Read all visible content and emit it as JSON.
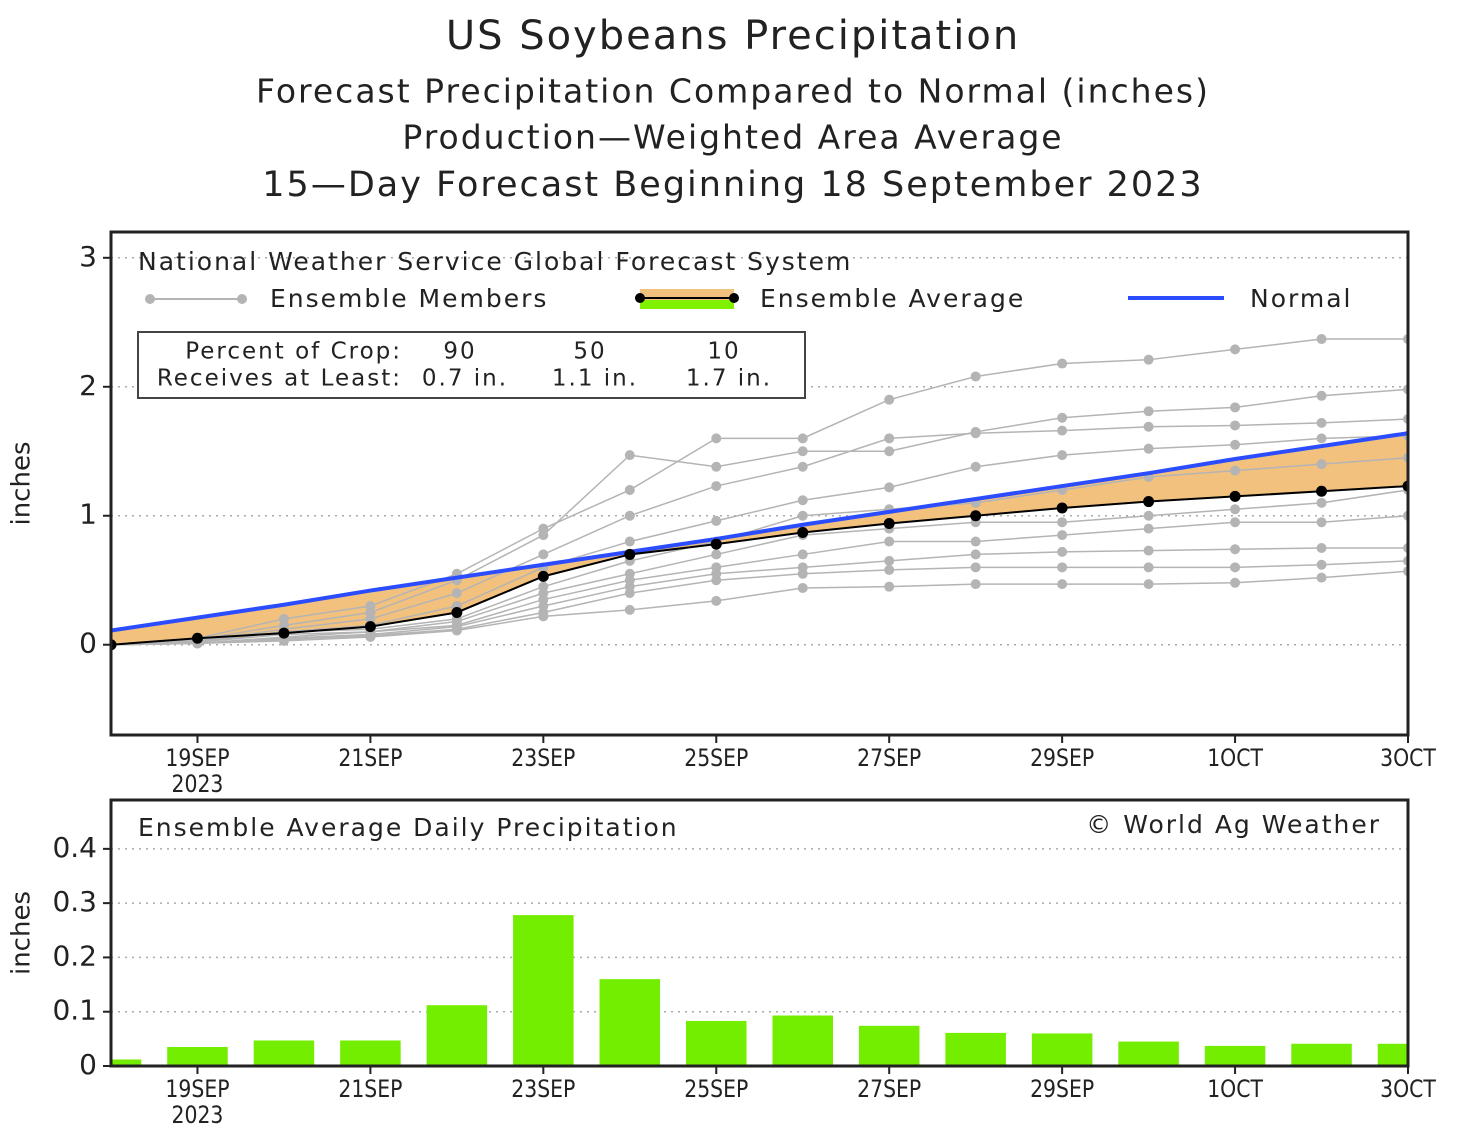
{
  "chart_data": [
    {
      "type": "line",
      "title": "US Soybeans Precipitation",
      "subtitles": [
        "Forecast Precipitation Compared to Normal (inches)",
        "Production—Weighted Area Average",
        "15—Day Forecast Beginning 18 September 2023"
      ],
      "source_label": "National Weather Service Global Forecast System",
      "ylabel": "inches",
      "categories": [
        null,
        "19SEP",
        null,
        "21SEP",
        null,
        "23SEP",
        null,
        "25SEP",
        null,
        "27SEP",
        null,
        "29SEP",
        null,
        "1OCT",
        null,
        "3OCT"
      ],
      "year_label": "2023",
      "ylim": [
        -0.7,
        3.2
      ],
      "yticks": [
        0,
        1,
        2,
        3
      ],
      "grid": true,
      "members": {
        "name": "Ensemble Members",
        "color": "#b4b4b4",
        "values": [
          [
            0,
            0.05,
            0.2,
            0.3,
            0.55,
            0.9,
            1.2,
            1.6,
            1.6,
            1.9,
            2.08,
            2.18,
            2.21,
            2.29,
            2.37,
            2.37
          ],
          [
            0,
            0.04,
            0.15,
            0.25,
            0.5,
            0.85,
            1.47,
            1.38,
            1.5,
            1.5,
            1.65,
            1.76,
            1.81,
            1.84,
            1.93,
            1.98
          ],
          [
            0,
            0.03,
            0.12,
            0.2,
            0.4,
            0.7,
            1.0,
            1.23,
            1.38,
            1.6,
            1.64,
            1.66,
            1.69,
            1.7,
            1.72,
            1.75
          ],
          [
            0,
            0.02,
            0.1,
            0.15,
            0.3,
            0.6,
            0.8,
            0.96,
            1.12,
            1.22,
            1.38,
            1.47,
            1.52,
            1.55,
            1.6,
            1.62
          ],
          [
            0,
            0.03,
            0.1,
            0.12,
            0.2,
            0.45,
            0.65,
            0.8,
            1.0,
            1.05,
            1.1,
            1.2,
            1.3,
            1.35,
            1.4,
            1.45
          ],
          [
            0,
            0.02,
            0.08,
            0.1,
            0.18,
            0.4,
            0.55,
            0.7,
            0.85,
            0.9,
            0.95,
            0.95,
            1.0,
            1.05,
            1.1,
            1.2
          ],
          [
            0,
            0.01,
            0.06,
            0.1,
            0.15,
            0.35,
            0.5,
            0.6,
            0.7,
            0.8,
            0.8,
            0.85,
            0.9,
            0.95,
            0.95,
            1.0
          ],
          [
            0,
            0.01,
            0.05,
            0.08,
            0.14,
            0.3,
            0.45,
            0.55,
            0.6,
            0.65,
            0.7,
            0.72,
            0.73,
            0.74,
            0.75,
            0.75
          ],
          [
            0,
            0.01,
            0.04,
            0.07,
            0.12,
            0.25,
            0.4,
            0.5,
            0.55,
            0.58,
            0.6,
            0.6,
            0.6,
            0.6,
            0.62,
            0.65
          ],
          [
            0,
            0.01,
            0.03,
            0.06,
            0.11,
            0.22,
            0.27,
            0.34,
            0.44,
            0.45,
            0.47,
            0.47,
            0.47,
            0.48,
            0.52,
            0.57
          ]
        ]
      },
      "series": [
        {
          "name": "Ensemble Average",
          "color": "#000000",
          "band_color": "#f3c17e",
          "band_edge_color": "#7ef000",
          "values": [
            0,
            0.05,
            0.09,
            0.14,
            0.25,
            0.53,
            0.7,
            0.78,
            0.87,
            0.94,
            1.0,
            1.06,
            1.11,
            1.15,
            1.19,
            1.23
          ]
        },
        {
          "name": "Normal",
          "color": "#2b4dff",
          "values": [
            0.11,
            0.21,
            0.31,
            0.42,
            0.52,
            0.62,
            0.72,
            0.82,
            0.93,
            1.03,
            1.13,
            1.23,
            1.33,
            1.44,
            1.54,
            1.64
          ]
        }
      ],
      "crop_table": {
        "header": [
          "Percent of Crop:",
          "Receives at Least:"
        ],
        "columns": [
          [
            "90",
            "0.7 in."
          ],
          [
            "50",
            "1.1 in."
          ],
          [
            "10",
            "1.7 in."
          ]
        ]
      }
    },
    {
      "type": "bar",
      "title": "Ensemble Average Daily Precipitation",
      "credit": "© World Ag Weather",
      "ylabel": "inches",
      "categories": [
        null,
        "19SEP",
        null,
        "21SEP",
        null,
        "23SEP",
        null,
        "25SEP",
        null,
        "27SEP",
        null,
        "29SEP",
        null,
        "1OCT",
        null,
        "3OCT"
      ],
      "year_label": "2023",
      "values": [
        0.012,
        0.035,
        0.047,
        0.047,
        0.112,
        0.278,
        0.16,
        0.083,
        0.093,
        0.074,
        0.061,
        0.06,
        0.045,
        0.037,
        0.041,
        0.041
      ],
      "color": "#74ee00",
      "ylim": [
        0,
        0.49
      ],
      "yticks": [
        0,
        0.1,
        0.2,
        0.3,
        0.4
      ],
      "grid": true
    }
  ]
}
